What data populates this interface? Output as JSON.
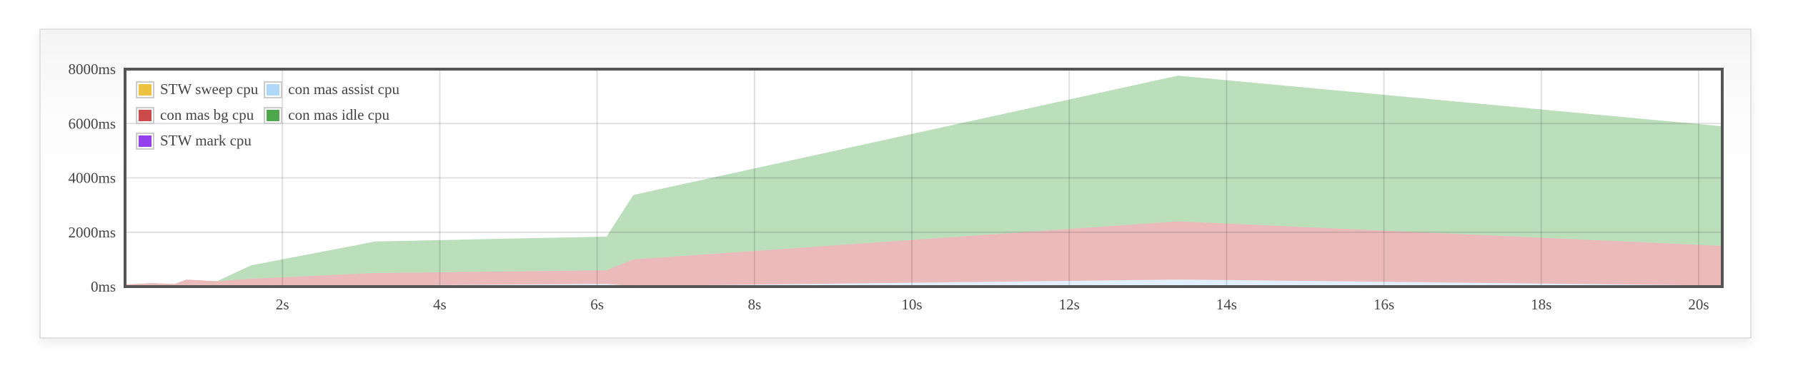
{
  "chart_data": {
    "type": "area",
    "stacked": true,
    "title": "",
    "xlabel": "",
    "ylabel": "",
    "xlim": [
      0,
      20.3
    ],
    "ylim": [
      0,
      8000
    ],
    "grid": true,
    "legend_position": "top-left",
    "x_ticks": [
      2,
      4,
      6,
      8,
      10,
      12,
      14,
      16,
      18,
      20
    ],
    "x_tick_labels": [
      "2s",
      "4s",
      "6s",
      "8s",
      "10s",
      "12s",
      "14s",
      "16s",
      "18s",
      "20s"
    ],
    "y_ticks": [
      0,
      2000,
      4000,
      6000,
      8000
    ],
    "y_tick_labels": [
      "0ms",
      "2000ms",
      "4000ms",
      "6000ms",
      "8000ms"
    ],
    "x": [
      0,
      0.34,
      0.63,
      0.78,
      1.17,
      1.6,
      3.18,
      6.12,
      6.46,
      13.38,
      20.3
    ],
    "series": [
      {
        "name": "STW sweep cpu",
        "color": "#edc240",
        "values": [
          0,
          0,
          0,
          0,
          0,
          0,
          0,
          0,
          0,
          0,
          0
        ]
      },
      {
        "name": "con mas assist cpu",
        "color": "#afd8f8",
        "values": [
          0,
          0,
          0,
          0,
          0,
          10,
          40,
          100,
          20,
          260,
          40
        ]
      },
      {
        "name": "con mas bg cpu",
        "color": "#cb4b4b",
        "values": [
          80,
          130,
          100,
          260,
          200,
          280,
          460,
          500,
          980,
          2140,
          1460
        ]
      },
      {
        "name": "con mas idle cpu",
        "color": "#4da74d",
        "values": [
          0,
          0,
          0,
          0,
          0,
          490,
          1160,
          1240,
          2370,
          5360,
          4400
        ]
      },
      {
        "name": "STW mark cpu",
        "color": "#9440ed",
        "values": [
          0,
          0,
          0,
          0,
          0,
          0,
          0,
          0,
          0,
          0,
          0
        ]
      }
    ],
    "legend_order": [
      0,
      1,
      2,
      3,
      4
    ]
  }
}
